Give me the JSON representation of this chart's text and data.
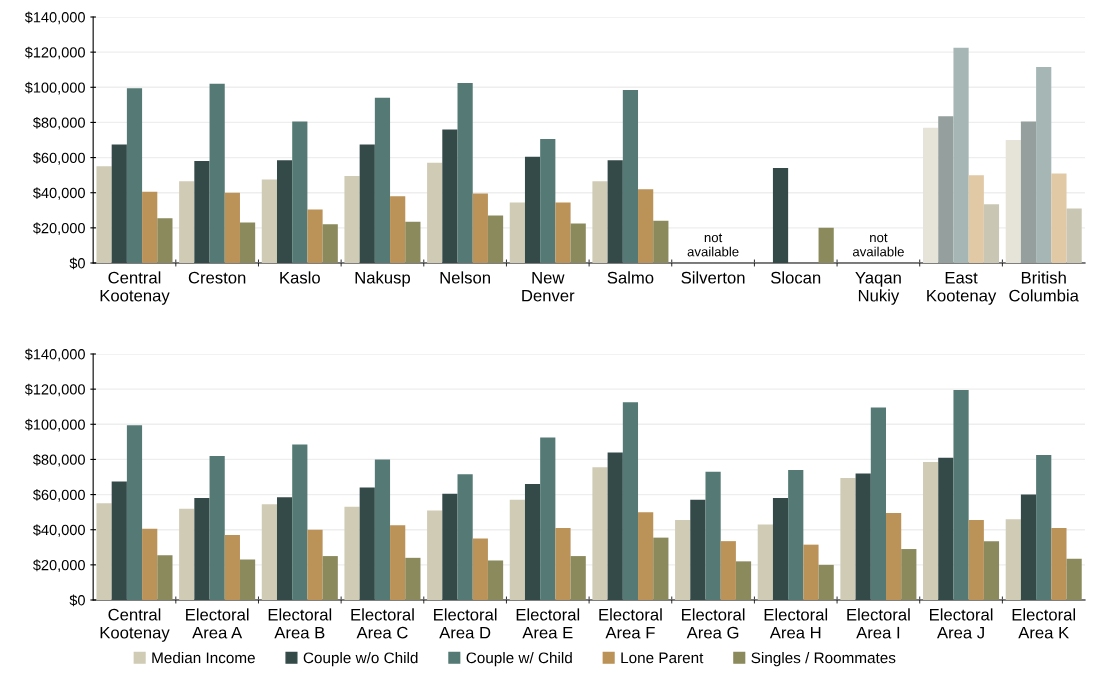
{
  "chart_data": [
    {
      "type": "bar",
      "categories": [
        "Central\nKootenay",
        "Creston",
        "Kaslo",
        "Nakusp",
        "Nelson",
        "New\nDenver",
        "Salmo",
        "Silverton",
        "Slocan",
        "Yaqan\nNukiy",
        "East\nKootenay",
        "British\nColumbia"
      ],
      "series": [
        {
          "name": "Median Income",
          "color": "#cfcbb5",
          "colors": [
            "#cfcbb5",
            "#cfcbb5",
            "#cfcbb5",
            "#cfcbb5",
            "#cfcbb5",
            "#cfcbb5",
            "#cfcbb5",
            "#cfcbb5",
            "#cfcbb5",
            "#cfcbb5",
            "#e6e4d9",
            "#e6e4d9"
          ],
          "values": [
            55000,
            46500,
            47500,
            49500,
            57000,
            34500,
            46500,
            null,
            null,
            null,
            77000,
            70000
          ]
        },
        {
          "name": "Couple w/o Child",
          "color": "#344a48",
          "colors": [
            "#344a48",
            "#344a48",
            "#344a48",
            "#344a48",
            "#344a48",
            "#344a48",
            "#344a48",
            "#344a48",
            "#344a48",
            "#344a48",
            "#959f9d",
            "#959f9d"
          ],
          "values": [
            67500,
            58000,
            58500,
            67500,
            76000,
            60500,
            58500,
            null,
            54000,
            null,
            83500,
            80500
          ]
        },
        {
          "name": "Couple w/ Child",
          "color": "#557a76",
          "colors": [
            "#557a76",
            "#557a76",
            "#557a76",
            "#557a76",
            "#557a76",
            "#557a76",
            "#557a76",
            "#557a76",
            "#557a76",
            "#557a76",
            "#a6b6b5",
            "#a6b6b5"
          ],
          "values": [
            99500,
            102000,
            80500,
            94000,
            102500,
            70500,
            98500,
            null,
            null,
            null,
            122500,
            111500
          ]
        },
        {
          "name": "Lone Parent",
          "color": "#bb9257",
          "colors": [
            "#bb9257",
            "#bb9257",
            "#bb9257",
            "#bb9257",
            "#bb9257",
            "#bb9257",
            "#bb9257",
            "#bb9257",
            "#bb9257",
            "#bb9257",
            "#e1c9a5",
            "#e1c9a5"
          ],
          "values": [
            40500,
            40000,
            30500,
            38000,
            39500,
            34500,
            42000,
            null,
            null,
            null,
            50000,
            51000
          ]
        },
        {
          "name": "Singles / Roommates",
          "color": "#8b8a5c",
          "colors": [
            "#8b8a5c",
            "#8b8a5c",
            "#8b8a5c",
            "#8b8a5c",
            "#8b8a5c",
            "#8b8a5c",
            "#8b8a5c",
            "#8b8a5c",
            "#8b8a5c",
            "#8b8a5c",
            "#c9c7b3",
            "#c9c7b3"
          ],
          "values": [
            25500,
            23000,
            22000,
            23500,
            27000,
            22500,
            24000,
            null,
            20000,
            null,
            33500,
            31000
          ]
        }
      ],
      "ylim": [
        0,
        140000
      ],
      "yticks": [
        {
          "value": 0,
          "label": "$0"
        },
        {
          "value": 20000,
          "label": "$20,000"
        },
        {
          "value": 40000,
          "label": "$40,000"
        },
        {
          "value": 60000,
          "label": "$60,000"
        },
        {
          "value": 80000,
          "label": "$80,000"
        },
        {
          "value": 100000,
          "label": "$100,000"
        },
        {
          "value": 120000,
          "label": "$120,000"
        },
        {
          "value": 140000,
          "label": "$140,000"
        }
      ],
      "annotations": [
        "not\navailable",
        "not\navailable"
      ],
      "grid": "y",
      "legend": "bottom"
    },
    {
      "type": "bar",
      "categories": [
        "Central\nKootenay",
        "Electoral\nArea A",
        "Electoral\nArea B",
        "Electoral\nArea C",
        "Electoral\nArea D",
        "Electoral\nArea E",
        "Electoral\nArea F",
        "Electoral\nArea G",
        "Electoral\nArea H",
        "Electoral\nArea I",
        "Electoral\nArea J",
        "Electoral\nArea K"
      ],
      "series": [
        {
          "name": "Median Income",
          "color": "#cfcbb5",
          "values": [
            55000,
            52000,
            54500,
            53000,
            51000,
            57000,
            75500,
            45500,
            43000,
            69500,
            78500,
            46000
          ]
        },
        {
          "name": "Couple w/o Child",
          "color": "#344a48",
          "values": [
            67500,
            58000,
            58500,
            64000,
            60500,
            66000,
            84000,
            57000,
            58000,
            72000,
            81000,
            60000
          ]
        },
        {
          "name": "Couple w/ Child",
          "color": "#557a76",
          "values": [
            99500,
            82000,
            88500,
            80000,
            71500,
            92500,
            112500,
            73000,
            74000,
            109500,
            119500,
            82500
          ]
        },
        {
          "name": "Lone Parent",
          "color": "#bb9257",
          "values": [
            40500,
            37000,
            40000,
            42500,
            35000,
            41000,
            50000,
            33500,
            31500,
            49500,
            45500,
            41000
          ]
        },
        {
          "name": "Singles / Roommates",
          "color": "#8b8a5c",
          "values": [
            25500,
            23000,
            25000,
            24000,
            22500,
            25000,
            35500,
            22000,
            20000,
            29000,
            33500,
            23500
          ]
        }
      ],
      "ylim": [
        0,
        140000
      ],
      "yticks": [
        {
          "value": 0,
          "label": "$0"
        },
        {
          "value": 20000,
          "label": "$20,000"
        },
        {
          "value": 40000,
          "label": "$40,000"
        },
        {
          "value": 60000,
          "label": "$60,000"
        },
        {
          "value": 80000,
          "label": "$80,000"
        },
        {
          "value": 100000,
          "label": "$100,000"
        },
        {
          "value": 120000,
          "label": "$120,000"
        },
        {
          "value": 140000,
          "label": "$140,000"
        }
      ],
      "grid": "y",
      "legend": "bottom"
    }
  ]
}
